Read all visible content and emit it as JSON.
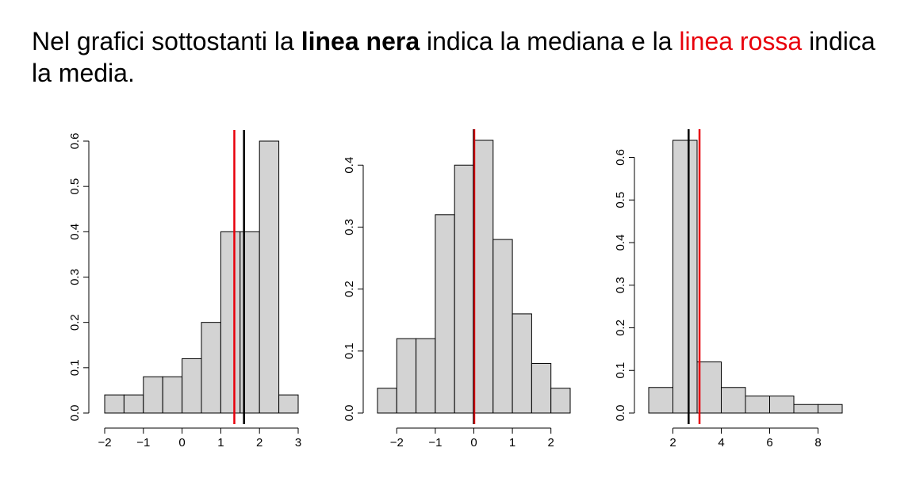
{
  "heading": {
    "part1": "Nel grafici sottostanti la ",
    "bold": "linea nera",
    "part2": " indica la mediana e la ",
    "red": "linea rossa",
    "part3": " indica la media."
  },
  "colors": {
    "bar_fill": "#d3d3d3",
    "median_line": "#000000",
    "mean_line": "#e8000b"
  },
  "chart_data": [
    {
      "type": "bar",
      "title": "",
      "xlabel": "",
      "ylabel": "",
      "bin_edges": [
        -2,
        -1.5,
        -1,
        -0.5,
        0,
        0.5,
        1,
        1.5,
        2,
        2.5,
        3
      ],
      "values": [
        0.04,
        0.04,
        0.08,
        0.08,
        0.12,
        0.2,
        0.4,
        0.4,
        0.6,
        0.04
      ],
      "xlim": [
        -2,
        3
      ],
      "ylim": [
        0,
        0.6
      ],
      "xticks": [
        -2,
        -1,
        0,
        1,
        2,
        3
      ],
      "xtick_labels": [
        "−2",
        "−1",
        "0",
        "1",
        "2",
        "3"
      ],
      "yticks": [
        0,
        0.1,
        0.2,
        0.3,
        0.4,
        0.5,
        0.6
      ],
      "ytick_labels": [
        "0.0",
        "0.1",
        "0.2",
        "0.3",
        "0.4",
        "0.5",
        "0.6"
      ],
      "median": 1.6,
      "mean": 1.35,
      "grid": false
    },
    {
      "type": "bar",
      "title": "",
      "xlabel": "",
      "ylabel": "",
      "bin_edges": [
        -2.5,
        -2,
        -1.5,
        -1,
        -0.5,
        0,
        0.5,
        1,
        1.5,
        2,
        2.5
      ],
      "values": [
        0.04,
        0.12,
        0.12,
        0.32,
        0.4,
        0.44,
        0.28,
        0.16,
        0.08,
        0.04
      ],
      "xlim": [
        -2.5,
        2.5
      ],
      "ylim": [
        0,
        0.44
      ],
      "xticks": [
        -2,
        -1,
        0,
        1,
        2
      ],
      "xtick_labels": [
        "−2",
        "−1",
        "0",
        "1",
        "2"
      ],
      "yticks": [
        0,
        0.1,
        0.2,
        0.3,
        0.4
      ],
      "ytick_labels": [
        "0.0",
        "0.1",
        "0.2",
        "0.3",
        "0.4"
      ],
      "median": 0.0,
      "mean": 0.01,
      "grid": false
    },
    {
      "type": "bar",
      "title": "",
      "xlabel": "",
      "ylabel": "",
      "bin_edges": [
        1,
        2,
        3,
        4,
        5,
        6,
        7,
        8,
        9
      ],
      "values": [
        0.06,
        0.64,
        0.12,
        0.06,
        0.04,
        0.04,
        0.02,
        0.02
      ],
      "xlim": [
        1,
        9
      ],
      "ylim": [
        0,
        0.64
      ],
      "xticks": [
        2,
        4,
        6,
        8
      ],
      "xtick_labels": [
        "2",
        "4",
        "6",
        "8"
      ],
      "yticks": [
        0,
        0.1,
        0.2,
        0.3,
        0.4,
        0.5,
        0.6
      ],
      "ytick_labels": [
        "0.0",
        "0.1",
        "0.2",
        "0.3",
        "0.4",
        "0.5",
        "0.6"
      ],
      "median": 2.65,
      "mean": 3.1,
      "grid": false
    }
  ]
}
